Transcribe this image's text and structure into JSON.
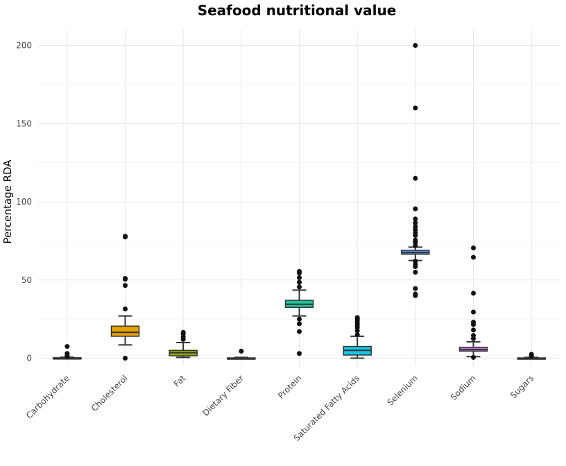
{
  "chart_data": {
    "type": "boxplot",
    "title": "Seafood nutritional value",
    "xlabel": "",
    "ylabel": "Percentage RDA",
    "ylim": [
      -10,
      210
    ],
    "yticks": [
      0,
      50,
      100,
      150,
      200
    ],
    "grid": true,
    "legend": "none",
    "categories": [
      "Carbohydrate",
      "Cholesterol",
      "Fat",
      "Dietary Fiber",
      "Protein",
      "Saturated Fatty Acids",
      "Selenium",
      "Sodium",
      "Sugars"
    ],
    "series": [
      {
        "category": "Carbohydrate",
        "color": "#4a4a4a",
        "min": 0,
        "q1": 0,
        "median": 0,
        "q3": 0.3,
        "max": 0.6,
        "outliers": [
          7.5,
          3,
          2,
          1.5,
          1
        ]
      },
      {
        "category": "Cholesterol",
        "color": "#e6a100",
        "min": 8.5,
        "q1": 14,
        "median": 16.5,
        "q3": 20.5,
        "max": 27,
        "outliers": [
          0,
          31.5,
          46.5,
          50.5,
          51,
          77.5,
          78
        ]
      },
      {
        "category": "Fat",
        "color": "#8fa800",
        "min": 0.5,
        "q1": 1.5,
        "median": 3.5,
        "q3": 5,
        "max": 10,
        "outliers": [
          12,
          13.5,
          15.5,
          16.5
        ]
      },
      {
        "category": "Dietary Fiber",
        "color": "#3a3a3a",
        "min": 0,
        "q1": 0,
        "median": 0,
        "q3": 0.2,
        "max": 0.5,
        "outliers": [
          4.5
        ]
      },
      {
        "category": "Protein",
        "color": "#1dc49c",
        "min": 27,
        "q1": 32.5,
        "median": 34.5,
        "q3": 37,
        "max": 43.5,
        "outliers": [
          3,
          17,
          22,
          25,
          45.5,
          48.5,
          51.5,
          54.5,
          55.5
        ]
      },
      {
        "category": "Saturated Fatty Acids",
        "color": "#12c6e8",
        "min": 0,
        "q1": 2,
        "median": 5,
        "q3": 7.5,
        "max": 14,
        "outliers": [
          15,
          17.5,
          19.5,
          21,
          22.5,
          24,
          25,
          26
        ]
      },
      {
        "category": "Selenium",
        "color": "#4f8fe0",
        "min": 62.5,
        "q1": 66.5,
        "median": 67.5,
        "q3": 69,
        "max": 71,
        "outliers": [
          40,
          41,
          44.5,
          55,
          58.5,
          60,
          62,
          72,
          74,
          75.5,
          78.5,
          80,
          82,
          84,
          86.5,
          89,
          95.5,
          115,
          160,
          200
        ]
      },
      {
        "category": "Sodium",
        "color": "#c26ee0",
        "min": 1,
        "q1": 4.5,
        "median": 5.5,
        "q3": 7,
        "max": 10.5,
        "outliers": [
          0.5,
          12.5,
          14.5,
          18,
          21.5,
          23,
          29.5,
          41.5,
          64.5,
          70.5
        ]
      },
      {
        "category": "Sugars",
        "color": "#3a3a3a",
        "min": 0,
        "q1": 0,
        "median": 0,
        "q3": 0.2,
        "max": 0.5,
        "outliers": [
          1.5,
          2.5
        ]
      }
    ]
  }
}
